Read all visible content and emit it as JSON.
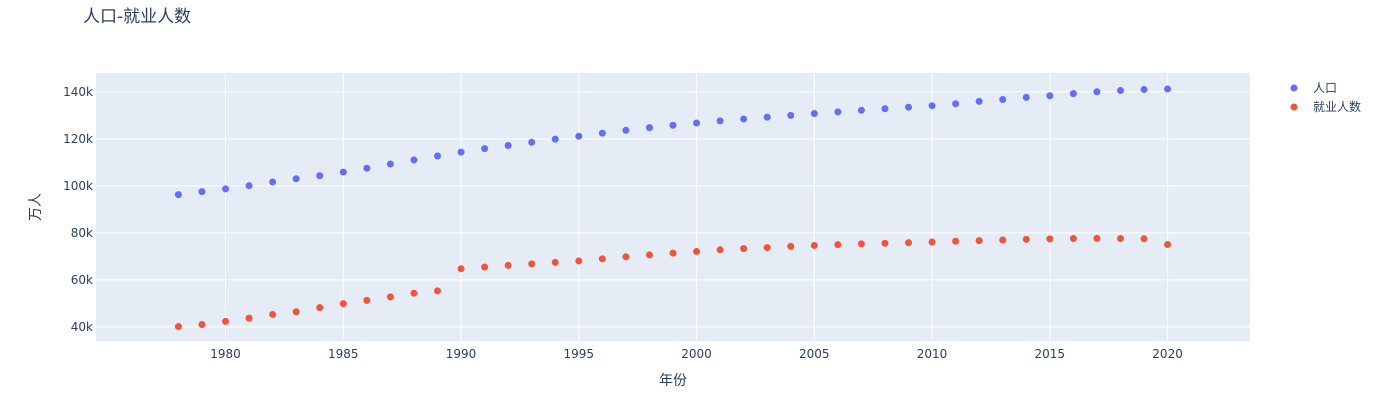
{
  "chart_data": {
    "type": "scatter",
    "title": "人口-就业人数",
    "xlabel": "年份",
    "ylabel": "万人",
    "xlim": [
      1974.5,
      2023.5
    ],
    "ylim": [
      34000,
      148000
    ],
    "x_ticks": [
      1980,
      1985,
      1990,
      1995,
      2000,
      2005,
      2010,
      2015,
      2020
    ],
    "y_ticks": [
      40000,
      60000,
      80000,
      100000,
      120000,
      140000
    ],
    "y_tick_labels": [
      "40k",
      "60k",
      "80k",
      "100k",
      "120k",
      "140k"
    ],
    "grid": true,
    "legend_position": "top-right",
    "x": [
      1978,
      1979,
      1980,
      1981,
      1982,
      1983,
      1984,
      1985,
      1986,
      1987,
      1988,
      1989,
      1990,
      1991,
      1992,
      1993,
      1994,
      1995,
      1996,
      1997,
      1998,
      1999,
      2000,
      2001,
      2002,
      2003,
      2004,
      2005,
      2006,
      2007,
      2008,
      2009,
      2010,
      2011,
      2012,
      2013,
      2014,
      2015,
      2016,
      2017,
      2018,
      2019,
      2020
    ],
    "series": [
      {
        "name": "人口",
        "color": "#636efa",
        "values": [
          96259,
          97542,
          98705,
          100072,
          101654,
          103008,
          104357,
          105851,
          107507,
          109300,
          111026,
          112704,
          114333,
          115823,
          117171,
          118517,
          119850,
          121121,
          122389,
          123626,
          124761,
          125786,
          126743,
          127627,
          128453,
          129227,
          129988,
          130756,
          131448,
          132129,
          132802,
          133450,
          134091,
          134916,
          135922,
          136726,
          137646,
          138326,
          139232,
          140011,
          140541,
          141008,
          141212
        ]
      },
      {
        "name": "就业人数",
        "color": "#ef553b",
        "values": [
          40152,
          41024,
          42361,
          43725,
          45295,
          46436,
          48197,
          49873,
          51282,
          52783,
          54334,
          55329,
          64749,
          65491,
          66152,
          66808,
          67455,
          68065,
          68950,
          69820,
          70637,
          71394,
          72085,
          72797,
          73280,
          73736,
          74264,
          74647,
          74978,
          75321,
          75564,
          75828,
          76105,
          76420,
          76704,
          76977,
          77253,
          77451,
          77603,
          77640,
          77586,
          77471,
          75064
        ]
      }
    ]
  }
}
